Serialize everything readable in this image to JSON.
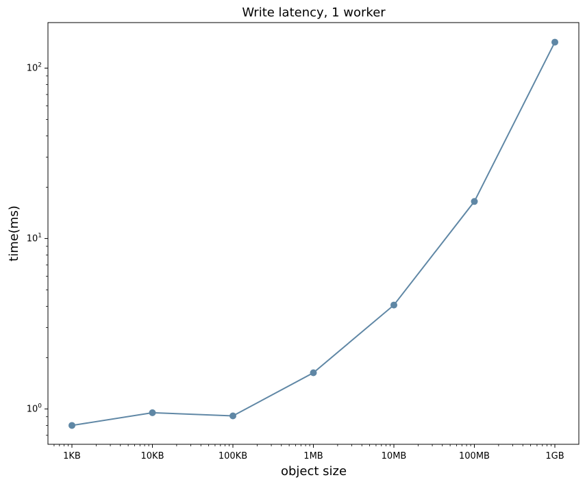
{
  "chart_data": {
    "type": "line",
    "title": "Write latency, 1 worker",
    "xlabel": "object size",
    "ylabel": "time(ms)",
    "x_scale": "log",
    "y_scale": "log",
    "categories": [
      "1KB",
      "10KB",
      "100KB",
      "1MB",
      "10MB",
      "100MB",
      "1GB"
    ],
    "series": [
      {
        "values": [
          0.8,
          0.95,
          0.91,
          1.63,
          4.07,
          16.5,
          142
        ],
        "color": "#5f87a5",
        "marker": "circle"
      }
    ],
    "y_ticks": [
      {
        "base": "10",
        "exp": "0",
        "value": 1
      },
      {
        "base": "10",
        "exp": "1",
        "value": 10
      },
      {
        "base": "10",
        "exp": "2",
        "value": 100
      }
    ],
    "ylim": [
      0.62,
      185
    ],
    "grid": false,
    "legend": "none"
  }
}
